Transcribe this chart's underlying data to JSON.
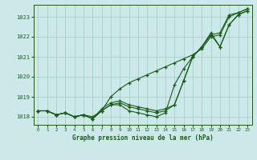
{
  "title": "Graphe pression niveau de la mer (hPa)",
  "background_color": "#cce8e8",
  "grid_color": "#aacece",
  "line_color": "#1a5c1a",
  "xlim": [
    -0.5,
    23.5
  ],
  "ylim": [
    1017.6,
    1023.6
  ],
  "xticks": [
    0,
    1,
    2,
    3,
    4,
    5,
    6,
    7,
    8,
    9,
    10,
    11,
    12,
    13,
    14,
    15,
    16,
    17,
    18,
    19,
    20,
    21,
    22,
    23
  ],
  "yticks": [
    1018,
    1019,
    1020,
    1021,
    1022,
    1023
  ],
  "series": [
    [
      1018.3,
      1018.3,
      1018.1,
      1018.2,
      1018.0,
      1018.1,
      1017.9,
      1018.3,
      1018.6,
      1018.6,
      1018.3,
      1018.2,
      1018.1,
      1018.0,
      1018.2,
      1019.6,
      1020.4,
      1021.0,
      1021.5,
      1022.2,
      1021.5,
      1022.6,
      1023.1,
      1023.3
    ],
    [
      1018.3,
      1018.3,
      1018.1,
      1018.2,
      1018.0,
      1018.1,
      1018.0,
      1018.3,
      1019.0,
      1019.4,
      1019.7,
      1019.9,
      1020.1,
      1020.3,
      1020.5,
      1020.7,
      1020.9,
      1021.1,
      1021.4,
      1022.0,
      1022.1,
      1023.0,
      1023.2,
      1023.4
    ],
    [
      1018.3,
      1018.3,
      1018.1,
      1018.2,
      1018.0,
      1018.1,
      1017.9,
      1018.3,
      1018.6,
      1018.7,
      1018.5,
      1018.4,
      1018.3,
      1018.2,
      1018.3,
      1018.6,
      1019.8,
      1021.0,
      1021.5,
      1022.1,
      1021.5,
      1022.6,
      1023.1,
      1023.3
    ],
    [
      1018.3,
      1018.3,
      1018.1,
      1018.2,
      1018.0,
      1018.1,
      1017.9,
      1018.4,
      1018.7,
      1018.8,
      1018.6,
      1018.5,
      1018.4,
      1018.3,
      1018.4,
      1018.6,
      1019.8,
      1021.0,
      1021.5,
      1022.1,
      1022.2,
      1023.1,
      1023.2,
      1023.4
    ]
  ],
  "marker": "+",
  "markersize": 3.5,
  "linewidth": 0.8
}
